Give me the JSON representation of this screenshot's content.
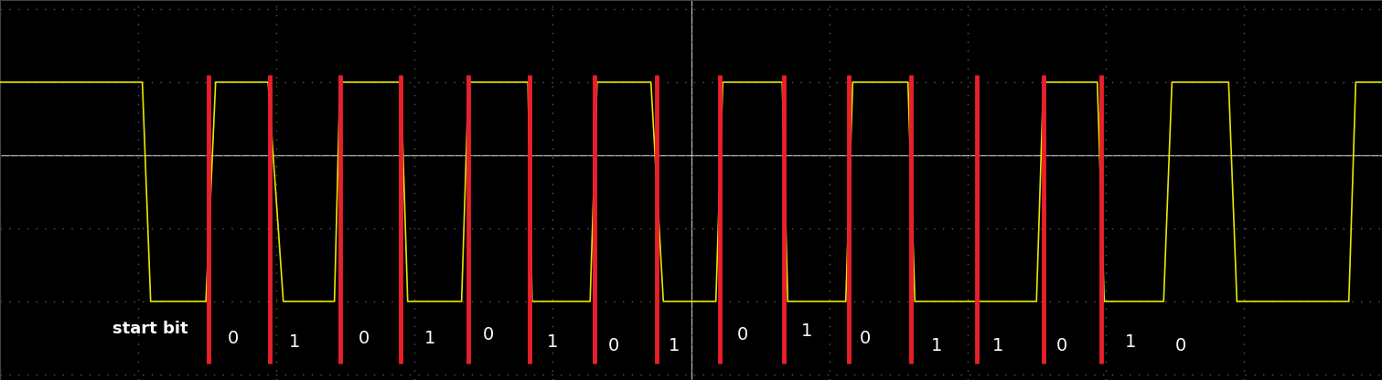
{
  "chart_data": {
    "type": "line",
    "x": [
      0.0,
      1.03,
      1.09,
      1.49,
      1.56,
      1.94,
      2.05,
      2.42,
      2.46,
      2.9,
      2.95,
      3.34,
      3.39,
      3.82,
      3.85,
      4.27,
      4.32,
      4.71,
      4.8,
      5.18,
      5.23,
      5.66,
      5.7,
      6.12,
      6.17,
      6.57,
      6.62,
      7.5,
      7.55,
      7.94,
      7.99,
      8.42,
      8.48,
      8.89,
      8.95,
      9.76,
      9.81,
      10.0
    ],
    "values": [
      1.0,
      1.0,
      -2.0,
      -2.0,
      1.0,
      1.0,
      -2.0,
      -2.0,
      1.0,
      1.0,
      -2.0,
      -2.0,
      1.0,
      1.0,
      -2.0,
      -2.0,
      1.0,
      1.0,
      -2.0,
      -2.0,
      1.0,
      1.0,
      -2.0,
      -2.0,
      1.0,
      1.0,
      -2.0,
      -2.0,
      1.0,
      1.0,
      -2.0,
      -2.0,
      1.0,
      1.0,
      -2.0,
      -2.0,
      1.0,
      1.0
    ],
    "color": "#e6e600",
    "xlim": [
      0,
      10
    ],
    "ylim": [
      -3.075,
      2.125
    ],
    "xticks": [
      0,
      1,
      2,
      3,
      4,
      5,
      6,
      7,
      8,
      9,
      10
    ],
    "yticks": [
      -3,
      -2,
      -1,
      0,
      1,
      2
    ],
    "grid": true,
    "tick_labels": false,
    "bit_boundaries": {
      "color": "#e8202a",
      "x": [
        1.51,
        1.95,
        2.46,
        2.9,
        3.39,
        3.83,
        4.3,
        4.75,
        5.21,
        5.67,
        6.14,
        6.59,
        7.07,
        7.55,
        7.97
      ]
    },
    "annotations": [
      {
        "text": "start bit",
        "x": 1.09,
        "y": -2.375
      },
      {
        "text": "0",
        "x": 1.69,
        "y": -2.5
      },
      {
        "text": "1",
        "x": 2.13,
        "y": -2.55
      },
      {
        "text": "0",
        "x": 2.63,
        "y": -2.5
      },
      {
        "text": "1",
        "x": 3.11,
        "y": -2.5
      },
      {
        "text": "0",
        "x": 3.53,
        "y": -2.45
      },
      {
        "text": "1",
        "x": 4.0,
        "y": -2.55
      },
      {
        "text": "0",
        "x": 4.44,
        "y": -2.6
      },
      {
        "text": "1",
        "x": 4.88,
        "y": -2.6
      },
      {
        "text": "0",
        "x": 5.37,
        "y": -2.45
      },
      {
        "text": "1",
        "x": 5.84,
        "y": -2.4
      },
      {
        "text": "0",
        "x": 6.26,
        "y": -2.5
      },
      {
        "text": "1",
        "x": 6.78,
        "y": -2.6
      },
      {
        "text": "1",
        "x": 7.22,
        "y": -2.6
      },
      {
        "text": "0",
        "x": 7.68,
        "y": -2.6
      },
      {
        "text": "1",
        "x": 8.18,
        "y": -2.55
      },
      {
        "text": "0",
        "x": 8.54,
        "y": -2.6
      }
    ]
  }
}
